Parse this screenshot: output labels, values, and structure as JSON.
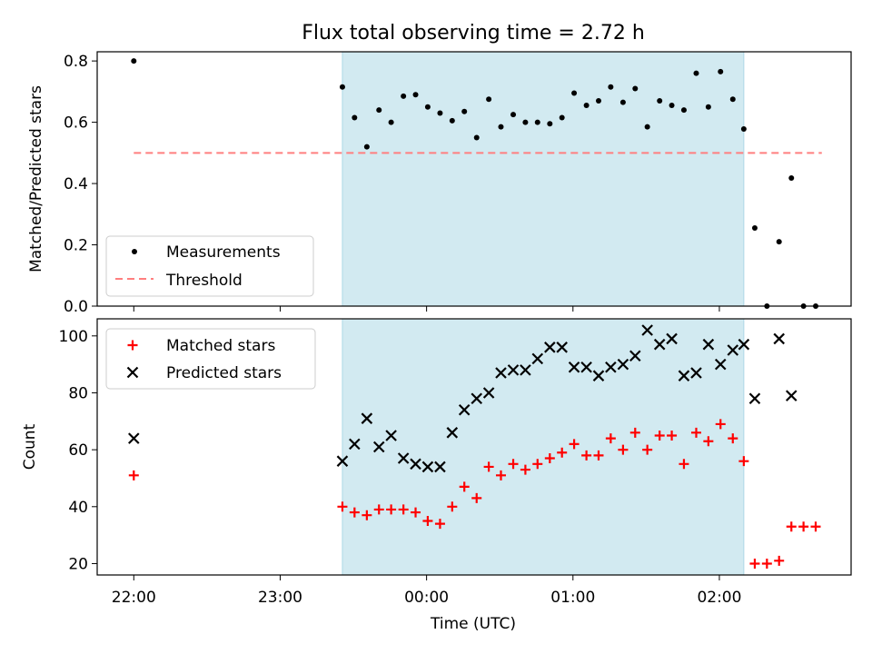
{
  "figure": {
    "title": "Flux total observing time = 2.72 h",
    "xlabel": "Time (UTC)"
  },
  "chart_data": [
    {
      "type": "scatter",
      "id": "ratio",
      "title": "Flux total observing time = 2.72 h",
      "xlabel": "",
      "ylabel": "Matched/Predicted stars",
      "x_unit": "hours since 22:00 UTC",
      "xlim": [
        -0.25,
        4.9
      ],
      "ylim": [
        0.0,
        0.83
      ],
      "yticks": [
        0.0,
        0.2,
        0.4,
        0.6,
        0.8
      ],
      "ytick_labels": [
        "0.0",
        "0.2",
        "0.4",
        "0.6",
        "0.8"
      ],
      "highlight_band": {
        "x0": 1.425,
        "x1": 4.167,
        "color": "#add8e6"
      },
      "legend": {
        "position": "lower-left",
        "items": [
          "Measurements",
          "Threshold"
        ]
      },
      "threshold": {
        "name": "Threshold",
        "value": 0.5,
        "x_range": [
          0.0,
          4.7
        ],
        "color": "#ff7f7f",
        "style": "dashed"
      },
      "series": [
        {
          "name": "Measurements",
          "marker": "dot",
          "color": "#000000",
          "x": [
            0.0,
            1.425,
            1.508,
            1.592,
            1.675,
            1.758,
            1.842,
            1.925,
            2.008,
            2.092,
            2.175,
            2.258,
            2.342,
            2.425,
            2.508,
            2.592,
            2.675,
            2.758,
            2.842,
            2.925,
            3.008,
            3.092,
            3.175,
            3.258,
            3.342,
            3.425,
            3.508,
            3.592,
            3.675,
            3.758,
            3.842,
            3.925,
            4.008,
            4.092,
            4.167,
            4.242,
            4.325,
            4.408,
            4.492,
            4.575,
            4.658
          ],
          "y": [
            0.8,
            0.715,
            0.615,
            0.52,
            0.64,
            0.6,
            0.685,
            0.69,
            0.65,
            0.63,
            0.605,
            0.635,
            0.55,
            0.675,
            0.585,
            0.625,
            0.6,
            0.6,
            0.595,
            0.615,
            0.695,
            0.655,
            0.67,
            0.715,
            0.665,
            0.71,
            0.585,
            0.67,
            0.655,
            0.64,
            0.76,
            0.65,
            0.765,
            0.675,
            0.578,
            0.255,
            0.0,
            0.21,
            0.418,
            0.0,
            0.0
          ]
        }
      ]
    },
    {
      "type": "scatter",
      "id": "counts",
      "title": "",
      "xlabel": "Time (UTC)",
      "ylabel": "Count",
      "x_unit": "hours since 22:00 UTC",
      "xlim": [
        -0.25,
        4.9
      ],
      "ylim": [
        16,
        106
      ],
      "yticks": [
        20,
        40,
        60,
        80,
        100
      ],
      "ytick_labels": [
        "20",
        "40",
        "60",
        "80",
        "100"
      ],
      "xticks": [
        0,
        1,
        2,
        3,
        4
      ],
      "xtick_labels": [
        "22:00",
        "23:00",
        "00:00",
        "01:00",
        "02:00"
      ],
      "highlight_band": {
        "x0": 1.425,
        "x1": 4.167,
        "color": "#add8e6"
      },
      "legend": {
        "position": "top-left",
        "items": [
          "Matched stars",
          "Predicted stars"
        ]
      },
      "series": [
        {
          "name": "Matched stars",
          "marker": "plus",
          "color": "#ff0000",
          "x": [
            0.0,
            1.425,
            1.508,
            1.592,
            1.675,
            1.758,
            1.842,
            1.925,
            2.008,
            2.092,
            2.175,
            2.258,
            2.342,
            2.425,
            2.508,
            2.592,
            2.675,
            2.758,
            2.842,
            2.925,
            3.008,
            3.092,
            3.175,
            3.258,
            3.342,
            3.425,
            3.508,
            3.592,
            3.675,
            3.758,
            3.842,
            3.925,
            4.008,
            4.092,
            4.167,
            4.242,
            4.325,
            4.408,
            4.492,
            4.575,
            4.658
          ],
          "y": [
            51,
            40,
            38,
            37,
            39,
            39,
            39,
            38,
            35,
            34,
            40,
            47,
            43,
            54,
            51,
            55,
            53,
            55,
            57,
            59,
            62,
            58,
            58,
            64,
            60,
            66,
            60,
            65,
            65,
            55,
            66,
            63,
            69,
            64,
            56,
            20,
            20,
            21,
            33,
            33,
            33
          ]
        },
        {
          "name": "Predicted stars",
          "marker": "x",
          "color": "#000000",
          "x": [
            0.0,
            1.425,
            1.508,
            1.592,
            1.675,
            1.758,
            1.842,
            1.925,
            2.008,
            2.092,
            2.175,
            2.258,
            2.342,
            2.425,
            2.508,
            2.592,
            2.675,
            2.758,
            2.842,
            2.925,
            3.008,
            3.092,
            3.175,
            3.258,
            3.342,
            3.425,
            3.508,
            3.592,
            3.675,
            3.758,
            3.842,
            3.925,
            4.008,
            4.092,
            4.167,
            4.242,
            4.408,
            4.492
          ],
          "y": [
            64,
            56,
            62,
            71,
            61,
            65,
            57,
            55,
            54,
            54,
            66,
            74,
            78,
            80,
            87,
            88,
            88,
            92,
            96,
            96,
            89,
            89,
            86,
            89,
            90,
            93,
            102,
            97,
            99,
            86,
            87,
            97,
            90,
            95,
            97,
            78,
            99,
            79
          ]
        }
      ]
    }
  ]
}
